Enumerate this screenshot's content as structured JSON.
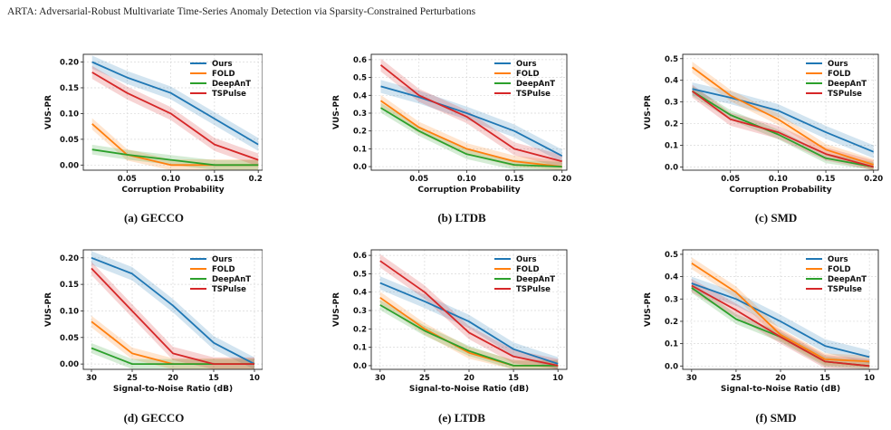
{
  "header": {
    "running_title": "ARTA: Adversarial-Robust Multivariate Time-Series Anomaly Detection via Sparsity-Constrained Perturbations"
  },
  "colors": {
    "Ours": "#1f77b4",
    "FOLD": "#ff7f0e",
    "DeepAnT": "#2ca02c",
    "TSPulse": "#d62728"
  },
  "chart_data": [
    {
      "type": "line",
      "caption": "(a) GECCO",
      "xlabel": "Corruption Probability",
      "ylabel": "VUS-PR",
      "x": [
        0.01,
        0.05,
        0.1,
        0.15,
        0.2
      ],
      "xticks": [
        0.05,
        0.1,
        0.15,
        0.2
      ],
      "xtick_labels": [
        "0.05",
        "0.10",
        "0.15",
        "0.20"
      ],
      "xlim": [
        0.0,
        0.205
      ],
      "ylim": [
        -0.01,
        0.215
      ],
      "yticks": [
        0.0,
        0.05,
        0.1,
        0.15,
        0.2
      ],
      "ytick_labels": [
        "0.00",
        "0.05",
        "0.10",
        "0.15",
        "0.20"
      ],
      "legend": "top-right",
      "grid": true,
      "series": [
        {
          "name": "Ours",
          "values": [
            0.2,
            0.17,
            0.14,
            0.09,
            0.04
          ]
        },
        {
          "name": "FOLD",
          "values": [
            0.08,
            0.02,
            0.0,
            0.0,
            0.0
          ]
        },
        {
          "name": "DeepAnT",
          "values": [
            0.03,
            0.02,
            0.01,
            0.0,
            0.0
          ]
        },
        {
          "name": "TSPulse",
          "values": [
            0.18,
            0.14,
            0.1,
            0.04,
            0.01
          ]
        }
      ]
    },
    {
      "type": "line",
      "caption": "(b) LTDB",
      "xlabel": "Corruption Probability",
      "ylabel": "VUS-PR",
      "x": [
        0.01,
        0.05,
        0.1,
        0.15,
        0.2
      ],
      "xticks": [
        0.05,
        0.1,
        0.15,
        0.2
      ],
      "xtick_labels": [
        "0.05",
        "0.10",
        "0.15",
        "0.20"
      ],
      "xlim": [
        0.0,
        0.205
      ],
      "ylim": [
        -0.02,
        0.63
      ],
      "yticks": [
        0.0,
        0.1,
        0.2,
        0.3,
        0.4,
        0.5,
        0.6
      ],
      "ytick_labels": [
        "0.0",
        "0.1",
        "0.2",
        "0.3",
        "0.4",
        "0.5",
        "0.6"
      ],
      "legend": "top-right",
      "grid": true,
      "series": [
        {
          "name": "Ours",
          "values": [
            0.45,
            0.39,
            0.3,
            0.2,
            0.06
          ]
        },
        {
          "name": "FOLD",
          "values": [
            0.37,
            0.22,
            0.1,
            0.03,
            0.0
          ]
        },
        {
          "name": "DeepAnT",
          "values": [
            0.33,
            0.2,
            0.07,
            0.01,
            0.0
          ]
        },
        {
          "name": "TSPulse",
          "values": [
            0.57,
            0.4,
            0.28,
            0.1,
            0.03
          ]
        }
      ]
    },
    {
      "type": "line",
      "caption": "(c) SMD",
      "xlabel": "Corruption Probability",
      "ylabel": "VUS-PR",
      "x": [
        0.01,
        0.05,
        0.1,
        0.15,
        0.2
      ],
      "xticks": [
        0.05,
        0.1,
        0.15,
        0.2
      ],
      "xtick_labels": [
        "0.05",
        "0.10",
        "0.15",
        "0.20"
      ],
      "xlim": [
        0.0,
        0.205
      ],
      "ylim": [
        -0.015,
        0.52
      ],
      "yticks": [
        0.0,
        0.1,
        0.2,
        0.3,
        0.4,
        0.5
      ],
      "ytick_labels": [
        "0.0",
        "0.1",
        "0.2",
        "0.3",
        "0.4",
        "0.5"
      ],
      "legend": "top-right",
      "grid": true,
      "series": [
        {
          "name": "Ours",
          "values": [
            0.36,
            0.32,
            0.26,
            0.16,
            0.07
          ]
        },
        {
          "name": "FOLD",
          "values": [
            0.46,
            0.33,
            0.22,
            0.08,
            0.01
          ]
        },
        {
          "name": "DeepAnT",
          "values": [
            0.35,
            0.24,
            0.15,
            0.04,
            0.0
          ]
        },
        {
          "name": "TSPulse",
          "values": [
            0.35,
            0.22,
            0.16,
            0.06,
            0.0
          ]
        }
      ]
    },
    {
      "type": "line",
      "caption": "(d) GECCO",
      "xlabel": "Signal-to-Noise Ratio (dB)",
      "ylabel": "VUS-PR",
      "x": [
        30,
        25,
        20,
        15,
        10
      ],
      "xticks": [
        30,
        25,
        20,
        15,
        10
      ],
      "xtick_labels": [
        "30",
        "25",
        "20",
        "15",
        "10"
      ],
      "xlim": [
        31,
        9
      ],
      "ylim": [
        -0.01,
        0.215
      ],
      "yticks": [
        0.0,
        0.05,
        0.1,
        0.15,
        0.2
      ],
      "ytick_labels": [
        "0.00",
        "0.05",
        "0.10",
        "0.15",
        "0.20"
      ],
      "legend": "top-right",
      "grid": true,
      "series": [
        {
          "name": "Ours",
          "values": [
            0.2,
            0.17,
            0.11,
            0.04,
            0.0
          ]
        },
        {
          "name": "FOLD",
          "values": [
            0.08,
            0.02,
            0.0,
            0.0,
            0.0
          ]
        },
        {
          "name": "DeepAnT",
          "values": [
            0.03,
            0.0,
            0.0,
            0.0,
            0.0
          ]
        },
        {
          "name": "TSPulse",
          "values": [
            0.18,
            0.1,
            0.02,
            0.0,
            0.0
          ]
        }
      ]
    },
    {
      "type": "line",
      "caption": "(e) LTDB",
      "xlabel": "Signal-to-Noise Ratio (dB)",
      "ylabel": "VUS-PR",
      "x": [
        30,
        25,
        20,
        15,
        10
      ],
      "xticks": [
        30,
        25,
        20,
        15,
        10
      ],
      "xtick_labels": [
        "30",
        "25",
        "20",
        "15",
        "10"
      ],
      "xlim": [
        31,
        9
      ],
      "ylim": [
        -0.02,
        0.63
      ],
      "yticks": [
        0.0,
        0.1,
        0.2,
        0.3,
        0.4,
        0.5,
        0.6
      ],
      "ytick_labels": [
        "0.0",
        "0.1",
        "0.2",
        "0.3",
        "0.4",
        "0.5",
        "0.6"
      ],
      "legend": "top-right",
      "grid": true,
      "series": [
        {
          "name": "Ours",
          "values": [
            0.45,
            0.35,
            0.24,
            0.09,
            0.01
          ]
        },
        {
          "name": "FOLD",
          "values": [
            0.37,
            0.2,
            0.07,
            0.0,
            0.0
          ]
        },
        {
          "name": "DeepAnT",
          "values": [
            0.33,
            0.19,
            0.08,
            0.0,
            0.0
          ]
        },
        {
          "name": "TSPulse",
          "values": [
            0.57,
            0.4,
            0.18,
            0.05,
            0.0
          ]
        }
      ]
    },
    {
      "type": "line",
      "caption": "(f) SMD",
      "xlabel": "Signal-to-Noise Ratio (dB)",
      "ylabel": "VUS-PR",
      "x": [
        30,
        25,
        20,
        15,
        10
      ],
      "xticks": [
        30,
        25,
        20,
        15,
        10
      ],
      "xtick_labels": [
        "30",
        "25",
        "20",
        "15",
        "10"
      ],
      "xlim": [
        31,
        9
      ],
      "ylim": [
        -0.015,
        0.52
      ],
      "yticks": [
        0.0,
        0.1,
        0.2,
        0.3,
        0.4,
        0.5
      ],
      "ytick_labels": [
        "0.0",
        "0.1",
        "0.2",
        "0.3",
        "0.4",
        "0.5"
      ],
      "legend": "top-right",
      "grid": true,
      "series": [
        {
          "name": "Ours",
          "values": [
            0.37,
            0.3,
            0.2,
            0.09,
            0.04
          ]
        },
        {
          "name": "FOLD",
          "values": [
            0.46,
            0.33,
            0.14,
            0.03,
            0.02
          ]
        },
        {
          "name": "DeepAnT",
          "values": [
            0.35,
            0.21,
            0.13,
            0.02,
            0.0
          ]
        },
        {
          "name": "TSPulse",
          "values": [
            0.36,
            0.25,
            0.13,
            0.02,
            0.0
          ]
        }
      ]
    }
  ]
}
